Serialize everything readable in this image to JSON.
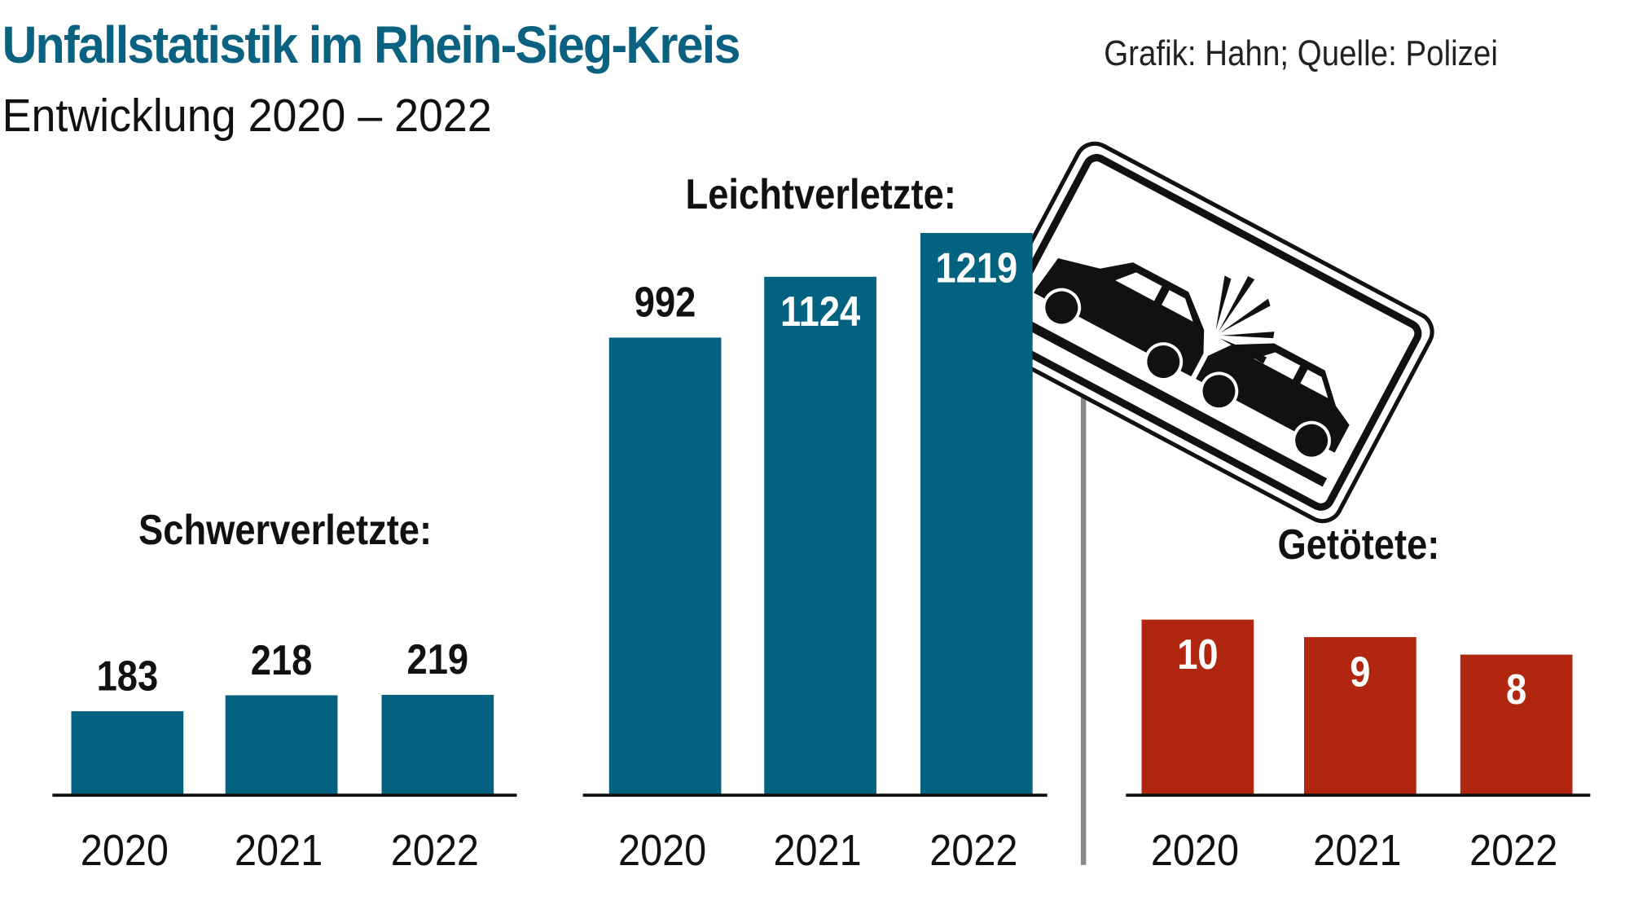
{
  "header": {
    "title": "Unfallstatistik im Rhein-Sieg-Kreis",
    "subtitle": "Entwicklung 2020 – 2022",
    "credit": "Grafik: Hahn; Quelle: Polizei"
  },
  "chart_data": [
    {
      "type": "bar",
      "title": "Schwerverletzte:",
      "categories": [
        "2020",
        "2021",
        "2022"
      ],
      "values": [
        183,
        218,
        219
      ],
      "color": "#02627f",
      "label_color": "#111111"
    },
    {
      "type": "bar",
      "title": "Leichtverletzte:",
      "categories": [
        "2020",
        "2021",
        "2022"
      ],
      "values": [
        992,
        1124,
        1219
      ],
      "color": "#02627f",
      "label_color": "#ffffff"
    },
    {
      "type": "bar",
      "title": "Getötete:",
      "categories": [
        "2020",
        "2021",
        "2022"
      ],
      "values": [
        10,
        9,
        8
      ],
      "color": "#b0260f",
      "label_color": "#ffffff"
    }
  ],
  "decoration": {
    "icon": "accident-traffic-sign-icon"
  }
}
